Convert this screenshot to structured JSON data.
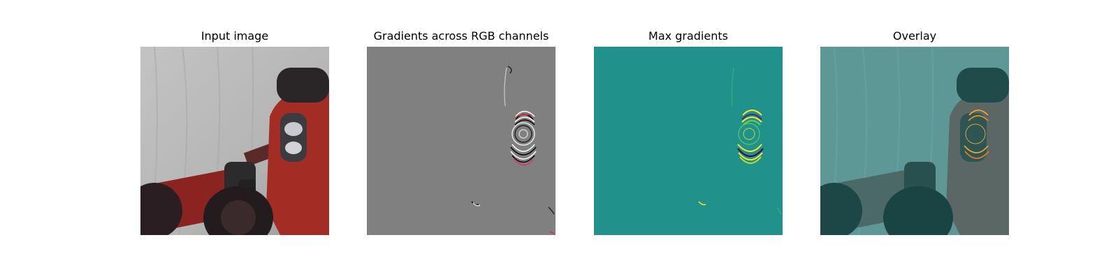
{
  "figure": {
    "panels": [
      {
        "title": "Input image"
      },
      {
        "title": "Gradients across RGB channels"
      },
      {
        "title": "Max gradients"
      },
      {
        "title": "Overlay"
      }
    ]
  },
  "colors": {
    "backdrop_gray": "#b9b9b9",
    "robot_red": "#a8302a",
    "gradient_gray": "#808080",
    "viridis_teal": "#21918c",
    "viridis_yellow": "#fde725",
    "overlay_teal": "#3e7f7c"
  }
}
